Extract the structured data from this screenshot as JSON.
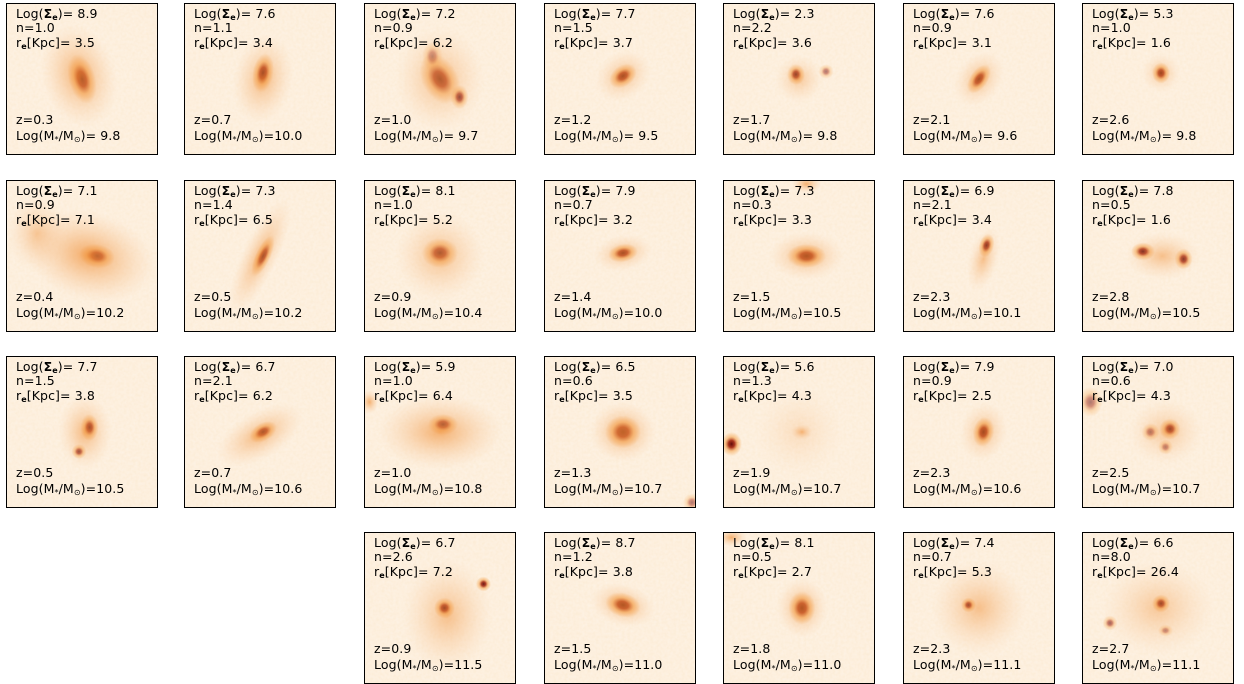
{
  "panels": [
    {
      "row": 0,
      "col": 0,
      "sigma": "8.9",
      "n": "1.0",
      "re": "3.5",
      "z": "0.3",
      "mass": "9.8",
      "blobs": [
        [
          0.5,
          0.5,
          0.09,
          0.17,
          -15,
          1.0
        ],
        [
          0.48,
          0.48,
          0.25,
          0.35,
          -15,
          0.4
        ]
      ]
    },
    {
      "row": 0,
      "col": 1,
      "sigma": "7.6",
      "n": "1.1",
      "re": "3.4",
      "z": "0.7",
      "mass": "10.0",
      "blobs": [
        [
          0.52,
          0.46,
          0.07,
          0.13,
          10,
          1.0
        ],
        [
          0.52,
          0.5,
          0.2,
          0.3,
          10,
          0.35
        ]
      ]
    },
    {
      "row": 0,
      "col": 2,
      "sigma": "7.2",
      "n": "0.9",
      "re": "6.2",
      "z": "1.0",
      "mass": "9.7",
      "blobs": [
        [
          0.5,
          0.5,
          0.12,
          0.18,
          -30,
          0.85
        ],
        [
          0.63,
          0.62,
          0.06,
          0.08,
          0,
          0.8
        ],
        [
          0.45,
          0.35,
          0.07,
          0.1,
          0,
          0.5
        ],
        [
          0.5,
          0.5,
          0.3,
          0.35,
          0,
          0.3
        ]
      ]
    },
    {
      "row": 0,
      "col": 3,
      "sigma": "7.7",
      "n": "1.5",
      "re": "3.7",
      "z": "1.2",
      "mass": "9.5",
      "blobs": [
        [
          0.52,
          0.48,
          0.1,
          0.07,
          -35,
          0.95
        ],
        [
          0.52,
          0.48,
          0.2,
          0.16,
          -35,
          0.3
        ]
      ]
    },
    {
      "row": 0,
      "col": 4,
      "sigma": "2.3",
      "n": "2.2",
      "re": "3.6",
      "z": "1.7",
      "mass": "9.8",
      "blobs": [
        [
          0.48,
          0.47,
          0.06,
          0.07,
          0,
          0.9
        ],
        [
          0.68,
          0.45,
          0.05,
          0.05,
          0,
          0.5
        ],
        [
          0.5,
          0.5,
          0.16,
          0.16,
          0,
          0.25
        ]
      ]
    },
    {
      "row": 0,
      "col": 5,
      "sigma": "7.6",
      "n": "0.9",
      "re": "3.1",
      "z": "2.1",
      "mass": "9.6",
      "blobs": [
        [
          0.5,
          0.5,
          0.06,
          0.11,
          35,
          0.95
        ],
        [
          0.5,
          0.5,
          0.15,
          0.2,
          35,
          0.3
        ]
      ]
    },
    {
      "row": 0,
      "col": 6,
      "sigma": "5.3",
      "n": "1.0",
      "re": "1.6",
      "z": "2.6",
      "mass": "9.8",
      "blobs": [
        [
          0.52,
          0.46,
          0.06,
          0.07,
          0,
          0.95
        ],
        [
          0.52,
          0.46,
          0.13,
          0.13,
          0,
          0.25
        ]
      ]
    },
    {
      "row": 1,
      "col": 0,
      "sigma": "7.1",
      "n": "0.9",
      "re": "7.1",
      "z": "0.4",
      "mass": "10.2",
      "blobs": [
        [
          0.6,
          0.5,
          0.12,
          0.08,
          10,
          1.0
        ],
        [
          0.55,
          0.5,
          0.45,
          0.3,
          15,
          0.45
        ],
        [
          0.2,
          0.35,
          0.2,
          0.25,
          0,
          0.25
        ]
      ]
    },
    {
      "row": 1,
      "col": 1,
      "sigma": "7.3",
      "n": "1.4",
      "re": "6.5",
      "z": "0.5",
      "mass": "10.2",
      "blobs": [
        [
          0.52,
          0.5,
          0.05,
          0.15,
          25,
          0.95
        ],
        [
          0.5,
          0.5,
          0.12,
          0.42,
          25,
          0.35
        ]
      ]
    },
    {
      "row": 1,
      "col": 2,
      "sigma": "8.1",
      "n": "1.0",
      "re": "5.2",
      "z": "0.9",
      "mass": "10.4",
      "blobs": [
        [
          0.5,
          0.48,
          0.12,
          0.1,
          0,
          0.85
        ],
        [
          0.5,
          0.5,
          0.3,
          0.3,
          0,
          0.3
        ]
      ]
    },
    {
      "row": 1,
      "col": 3,
      "sigma": "7.9",
      "n": "0.7",
      "re": "3.2",
      "z": "1.4",
      "mass": "10.0",
      "blobs": [
        [
          0.52,
          0.48,
          0.1,
          0.06,
          -10,
          0.95
        ],
        [
          0.52,
          0.48,
          0.2,
          0.12,
          -10,
          0.3
        ]
      ]
    },
    {
      "row": 1,
      "col": 4,
      "sigma": "7.3",
      "n": "0.3",
      "re": "3.3",
      "z": "1.5",
      "mass": "10.5",
      "blobs": [
        [
          0.55,
          0.5,
          0.13,
          0.08,
          0,
          1.0
        ],
        [
          0.55,
          0.5,
          0.25,
          0.16,
          0,
          0.35
        ],
        [
          0.55,
          0.02,
          0.1,
          0.06,
          0,
          0.4
        ]
      ]
    },
    {
      "row": 1,
      "col": 5,
      "sigma": "6.9",
      "n": "2.1",
      "re": "3.4",
      "z": "2.3",
      "mass": "10.1",
      "blobs": [
        [
          0.55,
          0.43,
          0.05,
          0.08,
          15,
          0.95
        ],
        [
          0.53,
          0.52,
          0.1,
          0.22,
          15,
          0.3
        ]
      ]
    },
    {
      "row": 1,
      "col": 6,
      "sigma": "7.8",
      "n": "0.5",
      "re": "1.6",
      "z": "2.8",
      "mass": "10.5",
      "blobs": [
        [
          0.4,
          0.47,
          0.08,
          0.06,
          0,
          0.95
        ],
        [
          0.67,
          0.52,
          0.06,
          0.07,
          0,
          0.9
        ],
        [
          0.53,
          0.5,
          0.25,
          0.16,
          0,
          0.3
        ]
      ]
    },
    {
      "row": 2,
      "col": 0,
      "sigma": "7.7",
      "n": "1.5",
      "re": "3.8",
      "z": "0.5",
      "mass": "10.5",
      "blobs": [
        [
          0.55,
          0.47,
          0.06,
          0.09,
          0,
          0.95
        ],
        [
          0.48,
          0.63,
          0.05,
          0.05,
          0,
          0.8
        ],
        [
          0.52,
          0.5,
          0.18,
          0.25,
          0,
          0.35
        ]
      ]
    },
    {
      "row": 2,
      "col": 1,
      "sigma": "6.7",
      "n": "2.1",
      "re": "6.2",
      "z": "0.7",
      "mass": "10.6",
      "blobs": [
        [
          0.52,
          0.5,
          0.1,
          0.06,
          -30,
          0.95
        ],
        [
          0.5,
          0.52,
          0.32,
          0.16,
          -30,
          0.35
        ]
      ]
    },
    {
      "row": 2,
      "col": 2,
      "sigma": "5.9",
      "n": "1.0",
      "re": "6.4",
      "z": "1.0",
      "mass": "10.8",
      "blobs": [
        [
          0.52,
          0.45,
          0.1,
          0.07,
          0,
          0.9
        ],
        [
          0.5,
          0.5,
          0.42,
          0.25,
          0,
          0.4
        ],
        [
          0.03,
          0.3,
          0.06,
          0.08,
          0,
          0.4
        ]
      ]
    },
    {
      "row": 2,
      "col": 3,
      "sigma": "6.5",
      "n": "0.6",
      "re": "3.5",
      "z": "1.3",
      "mass": "10.7",
      "blobs": [
        [
          0.52,
          0.5,
          0.12,
          0.11,
          0,
          1.0
        ],
        [
          0.52,
          0.5,
          0.22,
          0.2,
          0,
          0.4
        ],
        [
          0.98,
          0.97,
          0.06,
          0.06,
          0,
          0.5
        ]
      ]
    },
    {
      "row": 2,
      "col": 4,
      "sigma": "5.6",
      "n": "1.3",
      "re": "4.3",
      "z": "1.9",
      "mass": "10.7",
      "blobs": [
        [
          0.52,
          0.5,
          0.07,
          0.05,
          0,
          0.35
        ],
        [
          0.05,
          0.58,
          0.07,
          0.08,
          0,
          0.95
        ],
        [
          0.5,
          0.5,
          0.3,
          0.3,
          0,
          0.12
        ]
      ]
    },
    {
      "row": 2,
      "col": 5,
      "sigma": "7.9",
      "n": "0.9",
      "re": "2.5",
      "z": "2.3",
      "mass": "10.6",
      "blobs": [
        [
          0.53,
          0.5,
          0.07,
          0.1,
          10,
          1.0
        ],
        [
          0.53,
          0.5,
          0.16,
          0.2,
          10,
          0.3
        ]
      ]
    },
    {
      "row": 2,
      "col": 6,
      "sigma": "7.0",
      "n": "0.6",
      "re": "4.3",
      "z": "2.5",
      "mass": "10.7",
      "blobs": [
        [
          0.58,
          0.48,
          0.07,
          0.07,
          0,
          0.9
        ],
        [
          0.45,
          0.5,
          0.06,
          0.06,
          0,
          0.6
        ],
        [
          0.55,
          0.6,
          0.05,
          0.05,
          0,
          0.55
        ],
        [
          0.05,
          0.3,
          0.08,
          0.1,
          0,
          0.5
        ],
        [
          0.55,
          0.5,
          0.25,
          0.22,
          0,
          0.25
        ]
      ]
    },
    {
      "row": 3,
      "col": 2,
      "sigma": "6.7",
      "n": "2.6",
      "re": "7.2",
      "z": "0.9",
      "mass": "11.5",
      "blobs": [
        [
          0.53,
          0.5,
          0.07,
          0.07,
          0,
          0.95
        ],
        [
          0.79,
          0.34,
          0.05,
          0.05,
          0,
          0.9
        ],
        [
          0.55,
          0.55,
          0.3,
          0.38,
          0,
          0.3
        ]
      ]
    },
    {
      "row": 3,
      "col": 3,
      "sigma": "8.7",
      "n": "1.2",
      "re": "3.8",
      "z": "1.5",
      "mass": "11.0",
      "blobs": [
        [
          0.52,
          0.48,
          0.12,
          0.08,
          15,
          1.0
        ],
        [
          0.52,
          0.48,
          0.22,
          0.14,
          15,
          0.35
        ]
      ]
    },
    {
      "row": 3,
      "col": 4,
      "sigma": "8.1",
      "n": "0.5",
      "re": "2.7",
      "z": "1.8",
      "mass": "11.0",
      "blobs": [
        [
          0.52,
          0.5,
          0.09,
          0.11,
          0,
          1.0
        ],
        [
          0.52,
          0.5,
          0.17,
          0.2,
          0,
          0.35
        ],
        [
          0.05,
          0.03,
          0.1,
          0.06,
          0,
          0.4
        ]
      ]
    },
    {
      "row": 3,
      "col": 5,
      "sigma": "7.4",
      "n": "0.7",
      "re": "5.3",
      "z": "2.3",
      "mass": "11.1",
      "blobs": [
        [
          0.43,
          0.48,
          0.05,
          0.05,
          0,
          0.9
        ],
        [
          0.5,
          0.5,
          0.32,
          0.32,
          0,
          0.3
        ]
      ]
    },
    {
      "row": 3,
      "col": 6,
      "sigma": "6.6",
      "n": "8.0",
      "re": "26.4",
      "z": "2.7",
      "mass": "11.1",
      "blobs": [
        [
          0.52,
          0.47,
          0.06,
          0.06,
          0,
          0.9
        ],
        [
          0.18,
          0.6,
          0.05,
          0.05,
          0,
          0.6
        ],
        [
          0.55,
          0.65,
          0.05,
          0.04,
          0,
          0.5
        ],
        [
          0.5,
          0.5,
          0.38,
          0.32,
          0,
          0.25
        ]
      ]
    }
  ],
  "labels": {
    "sigma_prefix": "Log(",
    "sigma_symbol": "Σ",
    "sigma_sub": "e",
    "sigma_suffix": ")=",
    "n_prefix": "n=",
    "re_prefix": "r",
    "re_sub": "e",
    "re_unit": "[Kpc]=",
    "z_prefix": "z=",
    "mass_prefix": "Log(M",
    "mass_sub": "*",
    "mass_mid": "/M",
    "mass_sub2": "⊙",
    "mass_suffix": ")="
  },
  "colors": {
    "background": "#fdf3e6",
    "mid": "#f4a24a",
    "core": "#5a0000"
  }
}
